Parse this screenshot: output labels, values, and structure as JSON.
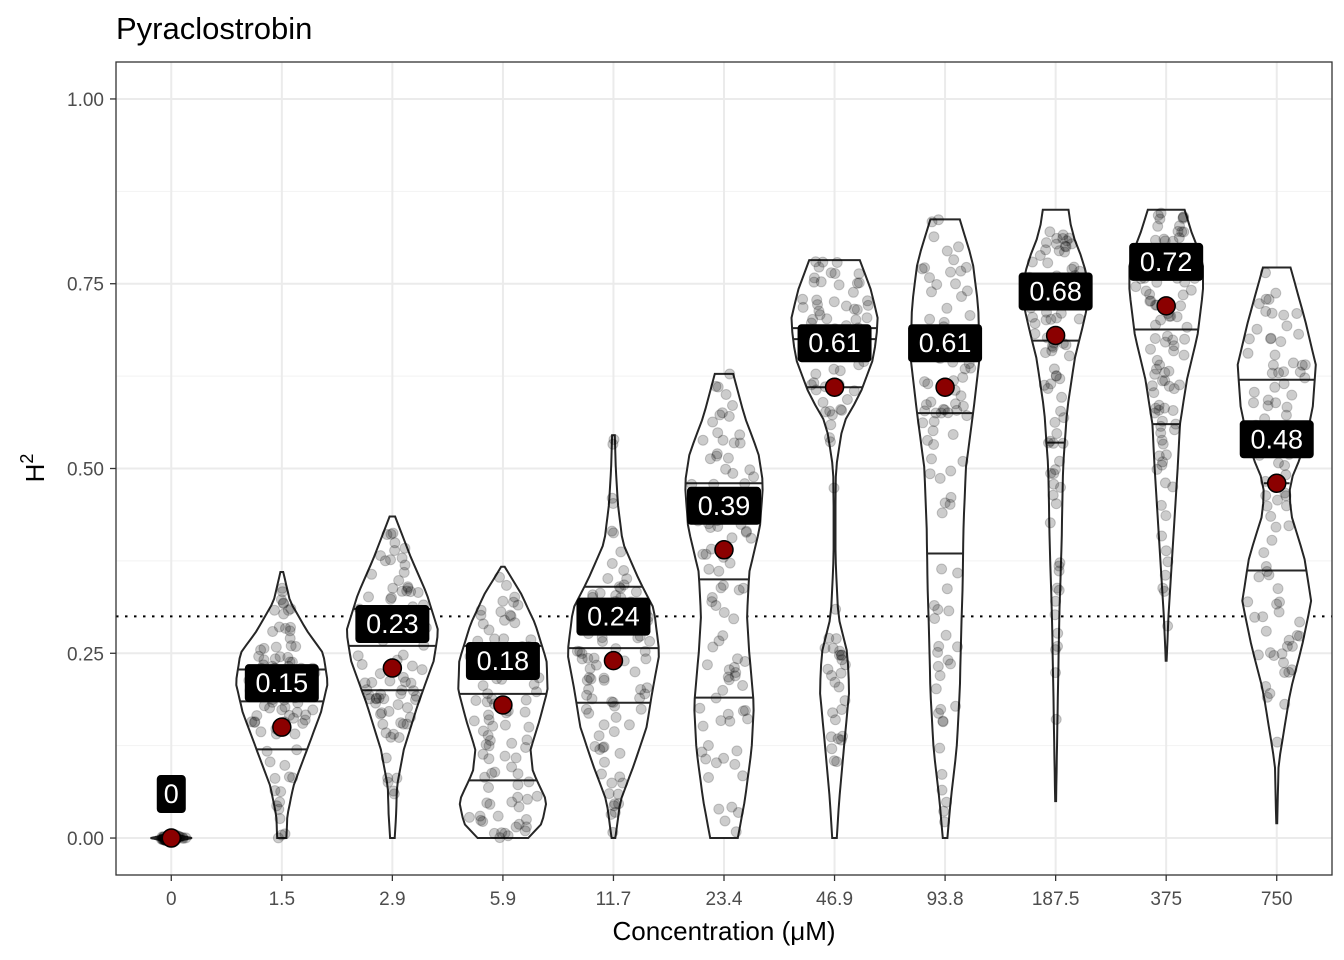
{
  "chart_data": {
    "type": "violin",
    "title": "Pyraclostrobin",
    "xlabel": "Concentration (μM)",
    "ylabel_base": "H",
    "ylabel_superscript": "2",
    "ylim": [
      -0.05,
      1.05
    ],
    "y_ticks": [
      0.0,
      0.25,
      0.5,
      0.75,
      1.0
    ],
    "y_tick_labels": [
      "0.00",
      "0.25",
      "0.50",
      "0.75",
      "1.00"
    ],
    "reference_line": 0.3,
    "categories": [
      "0",
      "1.5",
      "2.9",
      "5.9",
      "11.7",
      "23.4",
      "46.9",
      "93.8",
      "187.5",
      "375",
      "750"
    ],
    "means": [
      0.0,
      0.15,
      0.23,
      0.18,
      0.24,
      0.39,
      0.61,
      0.61,
      0.68,
      0.72,
      0.48
    ],
    "mean_labels": [
      "0",
      "0.15",
      "0.23",
      "0.18",
      "0.24",
      "0.39",
      "0.61",
      "0.61",
      "0.68",
      "0.72",
      "0.48"
    ],
    "quartiles": [
      [
        0.0,
        0.0,
        0.0
      ],
      [
        0.12,
        0.185,
        0.228
      ],
      [
        0.2,
        0.26,
        0.31
      ],
      [
        0.078,
        0.195,
        0.26
      ],
      [
        0.183,
        0.257,
        0.34
      ],
      [
        0.19,
        0.35,
        0.48
      ],
      [
        0.61,
        0.675,
        0.69
      ],
      [
        0.385,
        0.575,
        0.688
      ],
      [
        0.535,
        0.673,
        0.75
      ],
      [
        0.56,
        0.688,
        0.765
      ],
      [
        0.362,
        0.48,
        0.62
      ]
    ],
    "violins": [
      {
        "profile": [
          [
            -0.006,
            0.0
          ],
          [
            0.0,
            0.45
          ],
          [
            0.006,
            0.0
          ]
        ]
      },
      {
        "profile": [
          [
            0.0,
            0.1
          ],
          [
            0.03,
            0.12
          ],
          [
            0.07,
            0.25
          ],
          [
            0.12,
            0.55
          ],
          [
            0.17,
            0.85
          ],
          [
            0.21,
            1.0
          ],
          [
            0.25,
            0.9
          ],
          [
            0.28,
            0.55
          ],
          [
            0.32,
            0.18
          ],
          [
            0.36,
            0.03
          ]
        ]
      },
      {
        "profile": [
          [
            0.0,
            0.05
          ],
          [
            0.03,
            0.08
          ],
          [
            0.07,
            0.1
          ],
          [
            0.12,
            0.25
          ],
          [
            0.18,
            0.55
          ],
          [
            0.24,
            0.9
          ],
          [
            0.28,
            1.0
          ],
          [
            0.33,
            0.75
          ],
          [
            0.38,
            0.4
          ],
          [
            0.435,
            0.06
          ]
        ]
      },
      {
        "profile": [
          [
            0.0,
            0.55
          ],
          [
            0.02,
            0.85
          ],
          [
            0.05,
            0.95
          ],
          [
            0.09,
            0.65
          ],
          [
            0.12,
            0.6
          ],
          [
            0.16,
            0.8
          ],
          [
            0.2,
            0.97
          ],
          [
            0.24,
            0.95
          ],
          [
            0.29,
            0.7
          ],
          [
            0.33,
            0.4
          ],
          [
            0.367,
            0.04
          ]
        ]
      },
      {
        "profile": [
          [
            0.0,
            0.04
          ],
          [
            0.05,
            0.15
          ],
          [
            0.1,
            0.45
          ],
          [
            0.15,
            0.72
          ],
          [
            0.2,
            0.85
          ],
          [
            0.25,
            1.0
          ],
          [
            0.31,
            0.88
          ],
          [
            0.35,
            0.55
          ],
          [
            0.4,
            0.2
          ],
          [
            0.45,
            0.1
          ],
          [
            0.5,
            0.05
          ],
          [
            0.545,
            0.03
          ]
        ]
      },
      {
        "profile": [
          [
            0.0,
            0.3
          ],
          [
            0.05,
            0.45
          ],
          [
            0.12,
            0.6
          ],
          [
            0.18,
            0.65
          ],
          [
            0.25,
            0.55
          ],
          [
            0.3,
            0.5
          ],
          [
            0.36,
            0.55
          ],
          [
            0.42,
            0.78
          ],
          [
            0.48,
            0.85
          ],
          [
            0.52,
            0.75
          ],
          [
            0.57,
            0.45
          ],
          [
            0.628,
            0.2
          ]
        ]
      },
      {
        "profile": [
          [
            0.0,
            0.05
          ],
          [
            0.05,
            0.1
          ],
          [
            0.12,
            0.2
          ],
          [
            0.2,
            0.32
          ],
          [
            0.25,
            0.28
          ],
          [
            0.3,
            0.08
          ],
          [
            0.38,
            0.02
          ],
          [
            0.45,
            0.02
          ],
          [
            0.5,
            0.03
          ],
          [
            0.56,
            0.18
          ],
          [
            0.6,
            0.55
          ],
          [
            0.65,
            0.85
          ],
          [
            0.7,
            0.95
          ],
          [
            0.74,
            0.8
          ],
          [
            0.782,
            0.55
          ]
        ]
      },
      {
        "profile": [
          [
            0.0,
            0.05
          ],
          [
            0.05,
            0.12
          ],
          [
            0.12,
            0.25
          ],
          [
            0.2,
            0.32
          ],
          [
            0.28,
            0.35
          ],
          [
            0.34,
            0.38
          ],
          [
            0.42,
            0.4
          ],
          [
            0.5,
            0.45
          ],
          [
            0.58,
            0.62
          ],
          [
            0.65,
            0.75
          ],
          [
            0.72,
            0.72
          ],
          [
            0.78,
            0.6
          ],
          [
            0.837,
            0.32
          ]
        ]
      },
      {
        "profile": [
          [
            0.05,
            0.01
          ],
          [
            0.2,
            0.05
          ],
          [
            0.3,
            0.08
          ],
          [
            0.4,
            0.13
          ],
          [
            0.5,
            0.16
          ],
          [
            0.58,
            0.25
          ],
          [
            0.65,
            0.42
          ],
          [
            0.7,
            0.62
          ],
          [
            0.74,
            0.75
          ],
          [
            0.78,
            0.6
          ],
          [
            0.82,
            0.35
          ],
          [
            0.85,
            0.28
          ]
        ]
      },
      {
        "profile": [
          [
            0.24,
            0.01
          ],
          [
            0.3,
            0.05
          ],
          [
            0.38,
            0.13
          ],
          [
            0.45,
            0.2
          ],
          [
            0.5,
            0.25
          ],
          [
            0.56,
            0.3
          ],
          [
            0.62,
            0.45
          ],
          [
            0.68,
            0.68
          ],
          [
            0.74,
            0.8
          ],
          [
            0.78,
            0.8
          ],
          [
            0.82,
            0.55
          ],
          [
            0.85,
            0.4
          ]
        ]
      },
      {
        "profile": [
          [
            0.02,
            0.01
          ],
          [
            0.1,
            0.04
          ],
          [
            0.2,
            0.3
          ],
          [
            0.26,
            0.55
          ],
          [
            0.32,
            0.75
          ],
          [
            0.38,
            0.6
          ],
          [
            0.44,
            0.3
          ],
          [
            0.48,
            0.28
          ],
          [
            0.52,
            0.55
          ],
          [
            0.58,
            0.78
          ],
          [
            0.64,
            0.85
          ],
          [
            0.7,
            0.62
          ],
          [
            0.772,
            0.3
          ]
        ]
      }
    ]
  }
}
